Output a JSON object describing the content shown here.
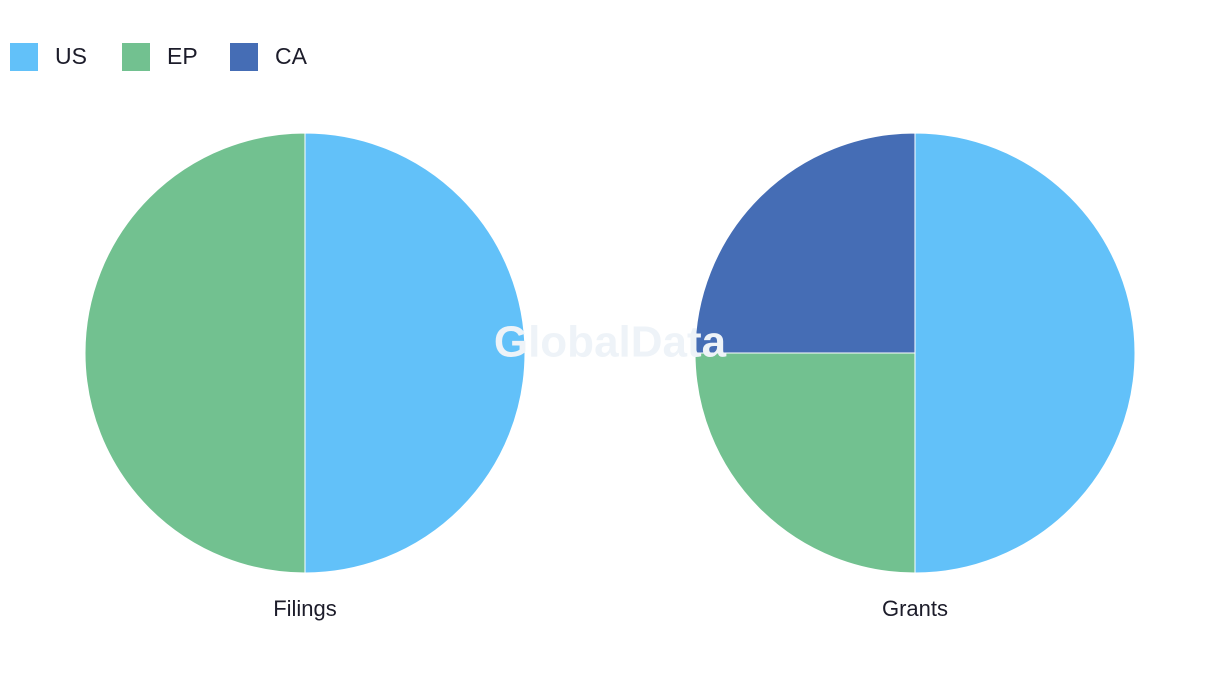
{
  "watermark": "GlobalData",
  "chart_data": [
    {
      "type": "pie",
      "title": "Filings",
      "categories": [
        "US",
        "EP"
      ],
      "values": [
        50,
        50
      ],
      "colors": [
        "#62c1f9",
        "#72c190"
      ]
    },
    {
      "type": "pie",
      "title": "Grants",
      "categories": [
        "US",
        "EP",
        "CA"
      ],
      "values": [
        50,
        25,
        25
      ],
      "colors": [
        "#62c1f9",
        "#72c190",
        "#456db5"
      ]
    }
  ]
}
